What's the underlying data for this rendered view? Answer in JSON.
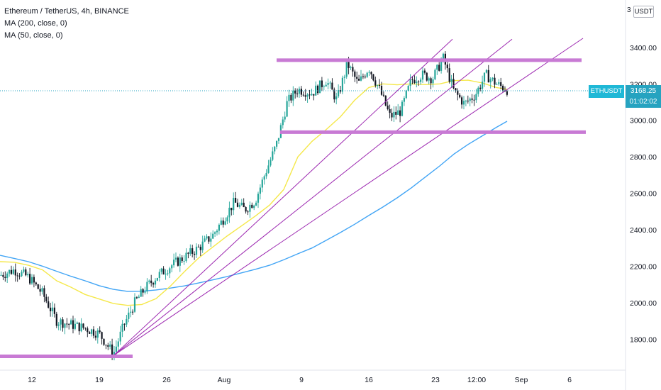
{
  "legend": {
    "symbol": "Ethereum / TetherUS, 4h, BINANCE",
    "ma200": "MA (200, close, 0)",
    "ma50": "MA (50, close, 0)"
  },
  "price_axis": {
    "currency": "USDT",
    "partial_label": "3"
  },
  "last_price": {
    "symbol_tag": "ETHUSDT",
    "price": "3168.25",
    "countdown": "01:02:02"
  },
  "colors": {
    "up": "#26a69a",
    "down": "#131722",
    "ma50": "#f5e84a",
    "ma200": "#42a5f5",
    "drawing": "#c87ad4",
    "trend": "#9c27b0",
    "last_price": "#26a3c0"
  },
  "chart_data": {
    "type": "candlestick",
    "title": "Ethereum / TetherUS, 4h, BINANCE",
    "series": [
      {
        "name": "MA (200, close, 0)",
        "x": [
          0,
          20,
          40,
          60,
          80,
          100,
          120,
          140,
          160,
          180,
          200,
          220,
          240,
          260,
          280,
          300,
          320,
          340,
          360,
          380,
          400,
          420,
          440,
          460,
          480,
          500,
          520,
          540,
          560,
          580,
          600,
          620,
          640,
          660,
          680,
          700,
          715
        ],
        "values": [
          2260,
          2243,
          2225,
          2200,
          2172,
          2145,
          2120,
          2093,
          2073,
          2062,
          2063,
          2070,
          2080,
          2092,
          2108,
          2125,
          2143,
          2163,
          2183,
          2205,
          2235,
          2268,
          2300,
          2342,
          2385,
          2430,
          2478,
          2525,
          2575,
          2630,
          2690,
          2750,
          2815,
          2868,
          2915,
          2962,
          2995
        ]
      },
      {
        "name": "MA (50, close, 0)",
        "x": [
          0,
          20,
          40,
          60,
          80,
          100,
          120,
          140,
          160,
          180,
          200,
          220,
          240,
          260,
          280,
          300,
          320,
          340,
          360,
          380,
          400,
          410,
          420,
          440,
          460,
          480,
          500,
          520,
          540,
          560,
          580,
          600,
          620,
          640,
          660,
          680,
          700,
          715
        ],
        "values": [
          2225,
          2222,
          2205,
          2180,
          2120,
          2085,
          2045,
          2020,
          1995,
          1985,
          1990,
          2022,
          2090,
          2170,
          2245,
          2305,
          2365,
          2420,
          2475,
          2535,
          2620,
          2710,
          2800,
          2885,
          2950,
          3020,
          3110,
          3180,
          3200,
          3195,
          3200,
          3196,
          3200,
          3218,
          3220,
          3205,
          3180,
          3170
        ]
      }
    ],
    "price_axis_ticks": [
      1800,
      2000,
      2200,
      2400,
      2600,
      2800,
      3000,
      3200,
      3400
    ],
    "price_axis_labels": [
      "1800.00",
      "2000.00",
      "2200.00",
      "2400.00",
      "2600.00",
      "2800.00",
      "3000.00",
      "3200.00",
      "3400.00"
    ],
    "ylim": [
      1630,
      3660
    ],
    "time_axis_labels": [
      "12",
      "19",
      "26",
      "Aug",
      "9",
      "16",
      "23",
      "12:00",
      "Sep",
      "6"
    ],
    "time_axis_x": [
      45,
      140,
      235,
      316,
      425,
      520,
      614,
      672,
      735,
      803
    ],
    "horizontal_levels": [
      {
        "price": 3330,
        "x_from": 390,
        "x_to": 820
      },
      {
        "price": 2935,
        "x_from": 395,
        "x_to": 826
      },
      {
        "price": 1706,
        "x_from": 0,
        "x_to": 187
      }
    ],
    "trendlines": [
      {
        "x1": 160,
        "p1": 1710,
        "x2": 638,
        "p2": 3445
      },
      {
        "x1": 160,
        "p1": 1710,
        "x2": 722,
        "p2": 3445
      },
      {
        "x1": 160,
        "p1": 1710,
        "x2": 822,
        "p2": 3450
      }
    ],
    "last_price": 3168.25,
    "candle_path": [
      [
        0,
        2150
      ],
      [
        20,
        2180
      ],
      [
        40,
        2140
      ],
      [
        60,
        2050
      ],
      [
        80,
        1900
      ],
      [
        100,
        1880
      ],
      [
        120,
        1860
      ],
      [
        140,
        1830
      ],
      [
        160,
        1720
      ],
      [
        175,
        1880
      ],
      [
        190,
        2000
      ],
      [
        205,
        2080
      ],
      [
        220,
        2140
      ],
      [
        240,
        2200
      ],
      [
        260,
        2250
      ],
      [
        280,
        2300
      ],
      [
        300,
        2370
      ],
      [
        315,
        2460
      ],
      [
        330,
        2550
      ],
      [
        345,
        2510
      ],
      [
        360,
        2560
      ],
      [
        375,
        2720
      ],
      [
        390,
        2870
      ],
      [
        405,
        3100
      ],
      [
        420,
        3170
      ],
      [
        440,
        3150
      ],
      [
        460,
        3220
      ],
      [
        475,
        3110
      ],
      [
        490,
        3310
      ],
      [
        505,
        3200
      ],
      [
        520,
        3290
      ],
      [
        535,
        3170
      ],
      [
        550,
        3020
      ],
      [
        565,
        3050
      ],
      [
        580,
        3220
      ],
      [
        595,
        3250
      ],
      [
        610,
        3230
      ],
      [
        625,
        3340
      ],
      [
        640,
        3160
      ],
      [
        655,
        3090
      ],
      [
        670,
        3140
      ],
      [
        685,
        3250
      ],
      [
        700,
        3200
      ],
      [
        715,
        3168
      ]
    ]
  }
}
